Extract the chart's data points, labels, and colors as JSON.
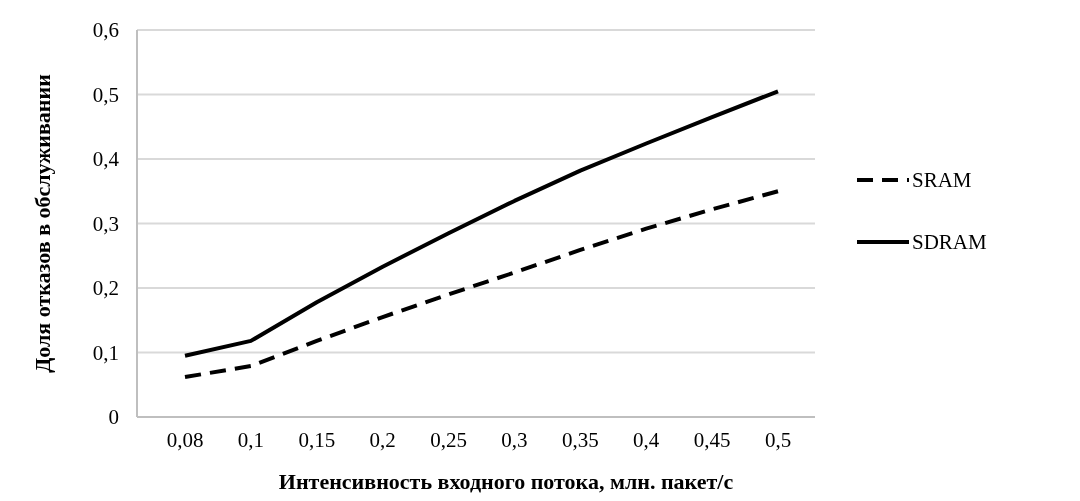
{
  "chart_data": {
    "type": "line",
    "xlabel": "Интенсивность входного потока, млн. пакет/с",
    "ylabel": "Доля отказов в обслуживании",
    "categories": [
      "0,08",
      "0,1",
      "0,15",
      "0,2",
      "0,25",
      "0,3",
      "0,35",
      "0,4",
      "0,45",
      "0,5"
    ],
    "series": [
      {
        "name": "SRAM",
        "color": "#000000",
        "line_style": "dashed",
        "values": [
          0.062,
          0.079,
          0.118,
          0.155,
          0.19,
          0.224,
          0.259,
          0.292,
          0.322,
          0.35
        ]
      },
      {
        "name": "SDRAM",
        "color": "#000000",
        "line_style": "solid",
        "values": [
          0.095,
          0.118,
          0.178,
          0.233,
          0.285,
          0.335,
          0.382,
          0.424,
          0.465,
          0.505
        ]
      }
    ],
    "ylim": [
      0,
      0.6
    ],
    "yticks": [
      {
        "value": 0,
        "label": "0"
      },
      {
        "value": 0.1,
        "label": "0,1"
      },
      {
        "value": 0.2,
        "label": "0,2"
      },
      {
        "value": 0.3,
        "label": "0,3"
      },
      {
        "value": 0.4,
        "label": "0,4"
      },
      {
        "value": 0.5,
        "label": "0,5"
      },
      {
        "value": 0.6,
        "label": "0,6"
      }
    ],
    "grid": "y",
    "legend": "right"
  }
}
